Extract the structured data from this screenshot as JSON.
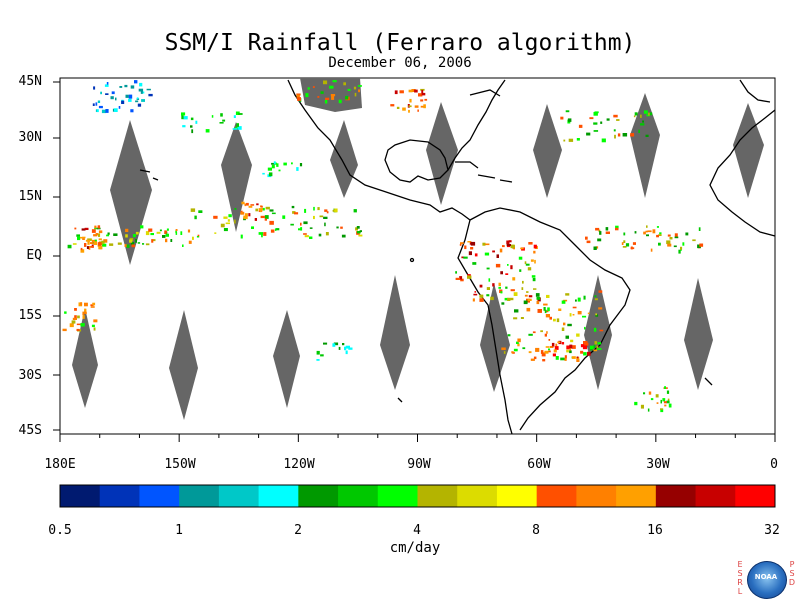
{
  "title": "SSM/I Rainfall (Ferraro algorithm)",
  "date": "December 06, 2006",
  "y_axis_labels": [
    "45N",
    "30N",
    "15N",
    "EQ",
    "15S",
    "30S",
    "45S"
  ],
  "x_axis_labels": [
    "180E",
    "150W",
    "120W",
    "90W",
    "60W",
    "30W",
    "0"
  ],
  "colorbar": {
    "colors": [
      "#001a70",
      "#0033b8",
      "#0055ff",
      "#009999",
      "#00c8c8",
      "#00ffff",
      "#009900",
      "#00c800",
      "#00ff00",
      "#b4b400",
      "#dcdc00",
      "#ffff00",
      "#ff5000",
      "#ff8000",
      "#ffa000",
      "#960000",
      "#c80000",
      "#ff0000"
    ],
    "labels": [
      "0.5",
      "1",
      "2",
      "4",
      "8",
      "16",
      "32"
    ]
  },
  "units": "cm/day",
  "logo": {
    "left_letters": [
      "E",
      "S",
      "R",
      "L"
    ],
    "right_letters": [
      "P",
      "S",
      "D"
    ],
    "emblem": "NOAA"
  }
}
